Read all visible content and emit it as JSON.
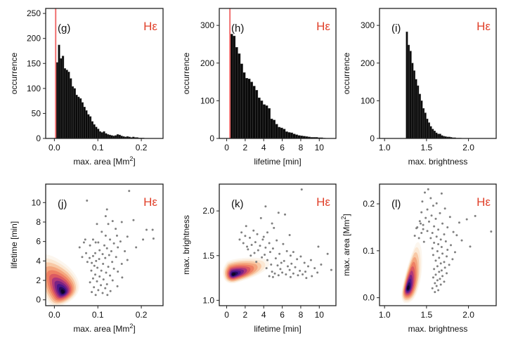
{
  "colors": {
    "bar_fill": "#0a0a0a",
    "bar_edge": "#555555",
    "threshold_line": "#f07070",
    "scatter": "#808080",
    "tag": "#e0402a",
    "kde_levels": [
      "#fcf6ee",
      "#fbe8d4",
      "#f8c9a6",
      "#f4a67e",
      "#ee8063",
      "#db5a62",
      "#b0387a",
      "#7a2384",
      "#4a158a",
      "#230b5c",
      "#0b0424"
    ]
  },
  "chart_data": [
    {
      "id": "g",
      "type": "bar",
      "panel_label": "(g)",
      "tag": "Hε",
      "xlabel": "max. area [Mm",
      "xlabel_sup": "2",
      "xlabel_end": "]",
      "ylabel": "occurrence",
      "xlim": [
        -0.02,
        0.25
      ],
      "ylim": [
        0,
        260
      ],
      "xticks": [
        0.0,
        0.1,
        0.2
      ],
      "xtick_labels": [
        "0.0",
        "0.1",
        "0.2"
      ],
      "yticks": [
        0,
        50,
        100,
        150,
        200,
        250
      ],
      "ytick_labels": [
        "0",
        "50",
        "100",
        "150",
        "200",
        "250"
      ],
      "bin_start": 0.004,
      "bin_width": 0.0045,
      "values": [
        152,
        187,
        160,
        165,
        140,
        137,
        133,
        120,
        104,
        100,
        87,
        83,
        80,
        72,
        63,
        56,
        48,
        44,
        34,
        28,
        23,
        19,
        14,
        12,
        14,
        10,
        8,
        7,
        6,
        5,
        6,
        8,
        7,
        5,
        4,
        3,
        4,
        3,
        2,
        3,
        2,
        2,
        1,
        1,
        1
      ],
      "vline": 0.003
    },
    {
      "id": "h",
      "type": "bar",
      "panel_label": "(h)",
      "tag": "Hε",
      "xlabel": "lifetime [min]",
      "ylabel": "occurrence",
      "xlim": [
        -0.8,
        11.8
      ],
      "ylim": [
        0,
        345
      ],
      "xticks": [
        0,
        2,
        4,
        6,
        8,
        10
      ],
      "xtick_labels": [
        "0",
        "2",
        "4",
        "6",
        "8",
        "10"
      ],
      "yticks": [
        0,
        100,
        200,
        300
      ],
      "ytick_labels": [
        "0",
        "100",
        "200",
        "300"
      ],
      "bin_start": 0.4,
      "bin_width": 0.27,
      "values": [
        277,
        272,
        242,
        225,
        198,
        175,
        160,
        158,
        150,
        139,
        128,
        108,
        100,
        90,
        87,
        80,
        52,
        49,
        38,
        30,
        28,
        25,
        18,
        16,
        15,
        12,
        10,
        8,
        7,
        6,
        5,
        4,
        3,
        3,
        3,
        2,
        2,
        1
      ],
      "vline": 0.35
    },
    {
      "id": "i",
      "type": "bar",
      "panel_label": "(i)",
      "tag": "Hε",
      "xlabel": "max. brightness",
      "ylabel": "occurrence",
      "xlim": [
        0.94,
        2.33
      ],
      "ylim": [
        0,
        345
      ],
      "xticks": [
        1.0,
        1.5,
        2.0
      ],
      "xtick_labels": [
        "1.0",
        "1.5",
        "2.0"
      ],
      "yticks": [
        0,
        100,
        200,
        300
      ],
      "ytick_labels": [
        "0",
        "100",
        "200",
        "300"
      ],
      "bin_start": 1.255,
      "bin_width": 0.022,
      "values": [
        283,
        248,
        232,
        200,
        180,
        157,
        140,
        118,
        100,
        80,
        68,
        52,
        42,
        32,
        25,
        20,
        15,
        12,
        12,
        8,
        6,
        5,
        4,
        4,
        3,
        2,
        2,
        1,
        1,
        1
      ]
    },
    {
      "id": "j",
      "type": "scatter",
      "panel_label": "(j)",
      "tag": "Hε",
      "xlabel": "max. area [Mm",
      "xlabel_sup": "2",
      "xlabel_end": "]",
      "ylabel": "lifetime [min]",
      "xlim": [
        -0.02,
        0.25
      ],
      "ylim": [
        -0.6,
        11.9
      ],
      "xticks": [
        0.0,
        0.1,
        0.2
      ],
      "xtick_labels": [
        "0.0",
        "0.1",
        "0.2"
      ],
      "yticks": [
        0,
        2,
        4,
        6,
        8,
        10
      ],
      "ytick_labels": [
        "0",
        "2",
        "4",
        "6",
        "8",
        "10"
      ],
      "kde": {
        "center": [
          0.02,
          0.8
        ],
        "lower": [
          0.04,
          1.1
        ],
        "upper": [
          0.05,
          5.0
        ],
        "angle_deg": 35
      },
      "points": [
        [
          0.075,
          10.2
        ],
        [
          0.172,
          11.2
        ],
        [
          0.121,
          9.3
        ],
        [
          0.118,
          8.6
        ],
        [
          0.134,
          8.1
        ],
        [
          0.182,
          8.2
        ],
        [
          0.226,
          7.2
        ],
        [
          0.212,
          7.2
        ],
        [
          0.155,
          8.0
        ],
        [
          0.098,
          7.8
        ],
        [
          0.124,
          7.8
        ],
        [
          0.141,
          7.3
        ],
        [
          0.109,
          7.0
        ],
        [
          0.144,
          6.6
        ],
        [
          0.118,
          6.6
        ],
        [
          0.168,
          6.5
        ],
        [
          0.228,
          6.3
        ],
        [
          0.204,
          6.2
        ],
        [
          0.089,
          6.2
        ],
        [
          0.128,
          6.2
        ],
        [
          0.152,
          6.0
        ],
        [
          0.095,
          5.9
        ],
        [
          0.101,
          5.9
        ],
        [
          0.137,
          5.8
        ],
        [
          0.115,
          5.6
        ],
        [
          0.082,
          5.6
        ],
        [
          0.146,
          5.4
        ],
        [
          0.188,
          5.4
        ],
        [
          0.121,
          5.3
        ],
        [
          0.104,
          5.1
        ],
        [
          0.131,
          5.0
        ],
        [
          0.162,
          5.0
        ],
        [
          0.094,
          4.8
        ],
        [
          0.111,
          4.7
        ],
        [
          0.126,
          4.6
        ],
        [
          0.089,
          4.5
        ],
        [
          0.142,
          4.4
        ],
        [
          0.081,
          4.3
        ],
        [
          0.117,
          4.3
        ],
        [
          0.103,
          4.2
        ],
        [
          0.168,
          4.1
        ],
        [
          0.096,
          4.0
        ],
        [
          0.133,
          3.9
        ],
        [
          0.086,
          3.8
        ],
        [
          0.112,
          3.7
        ],
        [
          0.155,
          3.7
        ],
        [
          0.092,
          3.5
        ],
        [
          0.124,
          3.4
        ],
        [
          0.099,
          3.3
        ],
        [
          0.137,
          3.2
        ],
        [
          0.108,
          3.0
        ],
        [
          0.085,
          3.0
        ],
        [
          0.146,
          2.9
        ],
        [
          0.119,
          2.8
        ],
        [
          0.094,
          2.6
        ],
        [
          0.128,
          2.5
        ],
        [
          0.104,
          2.4
        ],
        [
          0.156,
          2.3
        ],
        [
          0.089,
          2.2
        ],
        [
          0.113,
          2.1
        ],
        [
          0.134,
          2.0
        ],
        [
          0.098,
          1.9
        ],
        [
          0.082,
          1.8
        ],
        [
          0.121,
          1.6
        ],
        [
          0.107,
          1.5
        ],
        [
          0.145,
          1.4
        ],
        [
          0.091,
          1.3
        ],
        [
          0.117,
          1.2
        ],
        [
          0.101,
          1.0
        ],
        [
          0.129,
          0.9
        ],
        [
          0.086,
          0.8
        ],
        [
          0.111,
          0.7
        ],
        [
          0.095,
          0.5
        ],
        [
          0.122,
          0.5
        ],
        [
          0.058,
          5.4
        ],
        [
          0.064,
          4.4
        ],
        [
          0.071,
          6.2
        ],
        [
          0.076,
          3.9
        ],
        [
          0.068,
          5.9
        ],
        [
          0.073,
          4.8
        ]
      ]
    },
    {
      "id": "k",
      "type": "scatter",
      "panel_label": "(k)",
      "tag": "Hε",
      "xlabel": "lifetime [min]",
      "ylabel": "max. brightness",
      "xlim": [
        -0.8,
        11.8
      ],
      "ylim": [
        0.94,
        2.3
      ],
      "xticks": [
        0,
        2,
        4,
        6,
        8,
        10
      ],
      "xtick_labels": [
        "0",
        "2",
        "4",
        "6",
        "8",
        "10"
      ],
      "yticks": [
        1.0,
        1.5,
        2.0
      ],
      "ytick_labels": [
        "1.0",
        "1.5",
        "2.0"
      ],
      "kde": {
        "center": [
          0.7,
          1.29
        ],
        "lower": [
          1.0,
          0.09
        ],
        "upper": [
          4.5,
          0.17
        ],
        "angle_deg": 15
      },
      "points": [
        [
          8.1,
          2.24
        ],
        [
          4.2,
          2.05
        ],
        [
          5.6,
          1.98
        ],
        [
          6.3,
          1.96
        ],
        [
          3.7,
          1.92
        ],
        [
          4.9,
          1.86
        ],
        [
          5.1,
          1.81
        ],
        [
          2.9,
          1.78
        ],
        [
          4.4,
          1.76
        ],
        [
          3.3,
          1.74
        ],
        [
          6.8,
          1.73
        ],
        [
          4.0,
          1.71
        ],
        [
          2.5,
          1.7
        ],
        [
          3.9,
          1.68
        ],
        [
          5.4,
          1.67
        ],
        [
          3.1,
          1.65
        ],
        [
          4.6,
          1.64
        ],
        [
          6.1,
          1.63
        ],
        [
          2.7,
          1.62
        ],
        [
          3.6,
          1.61
        ],
        [
          9.9,
          1.6
        ],
        [
          4.2,
          1.59
        ],
        [
          5.0,
          1.58
        ],
        [
          2.3,
          1.57
        ],
        [
          3.4,
          1.56
        ],
        [
          6.5,
          1.55
        ],
        [
          4.7,
          1.54
        ],
        [
          7.2,
          1.54
        ],
        [
          3.0,
          1.53
        ],
        [
          5.7,
          1.52
        ],
        [
          10.9,
          1.52
        ],
        [
          4.1,
          1.51
        ],
        [
          2.6,
          1.5
        ],
        [
          6.9,
          1.5
        ],
        [
          8.0,
          1.49
        ],
        [
          3.8,
          1.48
        ],
        [
          5.3,
          1.47
        ],
        [
          7.6,
          1.46
        ],
        [
          4.4,
          1.45
        ],
        [
          9.1,
          1.45
        ],
        [
          6.2,
          1.44
        ],
        [
          3.2,
          1.43
        ],
        [
          5.9,
          1.42
        ],
        [
          8.4,
          1.42
        ],
        [
          7.0,
          1.41
        ],
        [
          4.8,
          1.4
        ],
        [
          10.2,
          1.4
        ],
        [
          5.5,
          1.39
        ],
        [
          6.6,
          1.38
        ],
        [
          8.8,
          1.38
        ],
        [
          7.4,
          1.37
        ],
        [
          4.3,
          1.36
        ],
        [
          9.5,
          1.36
        ],
        [
          5.8,
          1.35
        ],
        [
          6.8,
          1.34
        ],
        [
          11.3,
          1.34
        ],
        [
          7.9,
          1.33
        ],
        [
          4.9,
          1.32
        ],
        [
          8.5,
          1.32
        ],
        [
          6.0,
          1.31
        ],
        [
          9.8,
          1.31
        ],
        [
          5.2,
          1.3
        ],
        [
          7.2,
          1.3
        ],
        [
          6.4,
          1.29
        ],
        [
          8.2,
          1.29
        ],
        [
          5.6,
          1.28
        ],
        [
          7.7,
          1.28
        ],
        [
          4.6,
          1.27
        ],
        [
          9.2,
          1.27
        ],
        [
          6.9,
          1.26
        ],
        [
          5.0,
          1.26
        ],
        [
          8.6,
          1.25
        ],
        [
          2.1,
          1.83
        ],
        [
          1.6,
          1.76
        ],
        [
          2.0,
          1.72
        ],
        [
          1.4,
          1.68
        ],
        [
          1.8,
          1.64
        ],
        [
          2.2,
          1.6
        ]
      ]
    },
    {
      "id": "l",
      "type": "scatter",
      "panel_label": "(l)",
      "tag": "Hε",
      "xlabel": "max. brightness",
      "ylabel": "max. area [Mm",
      "ylabel_sup": "2",
      "ylabel_end": "]",
      "xlim": [
        0.94,
        2.33
      ],
      "ylim": [
        -0.017,
        0.242
      ],
      "xticks": [
        1.0,
        1.5,
        2.0
      ],
      "xtick_labels": [
        "1.0",
        "1.5",
        "2.0"
      ],
      "yticks": [
        0.0,
        0.1,
        0.2
      ],
      "ytick_labels": [
        "0.0",
        "0.1",
        "0.2"
      ],
      "kde": {
        "center": [
          1.28,
          0.02
        ],
        "lower": [
          0.06,
          0.03
        ],
        "upper": [
          0.13,
          0.11
        ],
        "angle_deg": -12
      },
      "points": [
        [
          1.52,
          0.231
        ],
        [
          1.48,
          0.224
        ],
        [
          1.68,
          0.222
        ],
        [
          1.55,
          0.212
        ],
        [
          1.45,
          0.205
        ],
        [
          1.62,
          0.201
        ],
        [
          1.58,
          0.196
        ],
        [
          1.51,
          0.188
        ],
        [
          1.72,
          0.19
        ],
        [
          1.44,
          0.182
        ],
        [
          1.66,
          0.18
        ],
        [
          1.56,
          0.175
        ],
        [
          1.49,
          0.17
        ],
        [
          1.61,
          0.168
        ],
        [
          1.78,
          0.172
        ],
        [
          1.53,
          0.162
        ],
        [
          1.69,
          0.158
        ],
        [
          1.46,
          0.155
        ],
        [
          1.59,
          0.152
        ],
        [
          1.75,
          0.15
        ],
        [
          1.64,
          0.145
        ],
        [
          1.51,
          0.142
        ],
        [
          2.27,
          0.141
        ],
        [
          1.82,
          0.14
        ],
        [
          1.57,
          0.138
        ],
        [
          1.71,
          0.135
        ],
        [
          1.62,
          0.13
        ],
        [
          1.86,
          0.133
        ],
        [
          1.55,
          0.127
        ],
        [
          1.67,
          0.124
        ],
        [
          1.92,
          0.122
        ],
        [
          1.73,
          0.12
        ],
        [
          1.59,
          0.117
        ],
        [
          1.64,
          0.114
        ],
        [
          1.79,
          0.112
        ],
        [
          1.68,
          0.108
        ],
        [
          1.57,
          0.105
        ],
        [
          1.75,
          0.102
        ],
        [
          1.63,
          0.099
        ],
        [
          1.84,
          0.097
        ],
        [
          1.69,
          0.094
        ],
        [
          1.58,
          0.091
        ],
        [
          1.74,
          0.088
        ],
        [
          1.65,
          0.085
        ],
        [
          1.81,
          0.082
        ],
        [
          1.61,
          0.079
        ],
        [
          1.71,
          0.076
        ],
        [
          1.67,
          0.073
        ],
        [
          1.77,
          0.07
        ],
        [
          1.63,
          0.067
        ],
        [
          1.72,
          0.064
        ],
        [
          1.59,
          0.061
        ],
        [
          1.68,
          0.058
        ],
        [
          1.65,
          0.055
        ],
        [
          1.74,
          0.052
        ],
        [
          1.61,
          0.049
        ],
        [
          1.69,
          0.046
        ],
        [
          1.58,
          0.043
        ],
        [
          1.66,
          0.04
        ],
        [
          1.63,
          0.037
        ],
        [
          1.71,
          0.034
        ],
        [
          1.6,
          0.031
        ],
        [
          1.67,
          0.028
        ],
        [
          1.62,
          0.025
        ],
        [
          1.57,
          0.02
        ],
        [
          1.64,
          0.016
        ],
        [
          1.6,
          0.012
        ],
        [
          1.42,
          0.163
        ],
        [
          1.38,
          0.148
        ],
        [
          1.44,
          0.138
        ],
        [
          1.36,
          0.132
        ],
        [
          1.41,
          0.127
        ],
        [
          1.47,
          0.119
        ],
        [
          1.39,
          0.15
        ],
        [
          1.43,
          0.158
        ],
        [
          1.46,
          0.146
        ],
        [
          1.98,
          0.167
        ],
        [
          2.08,
          0.174
        ],
        [
          1.89,
          0.16
        ],
        [
          2.02,
          0.109
        ]
      ]
    }
  ]
}
